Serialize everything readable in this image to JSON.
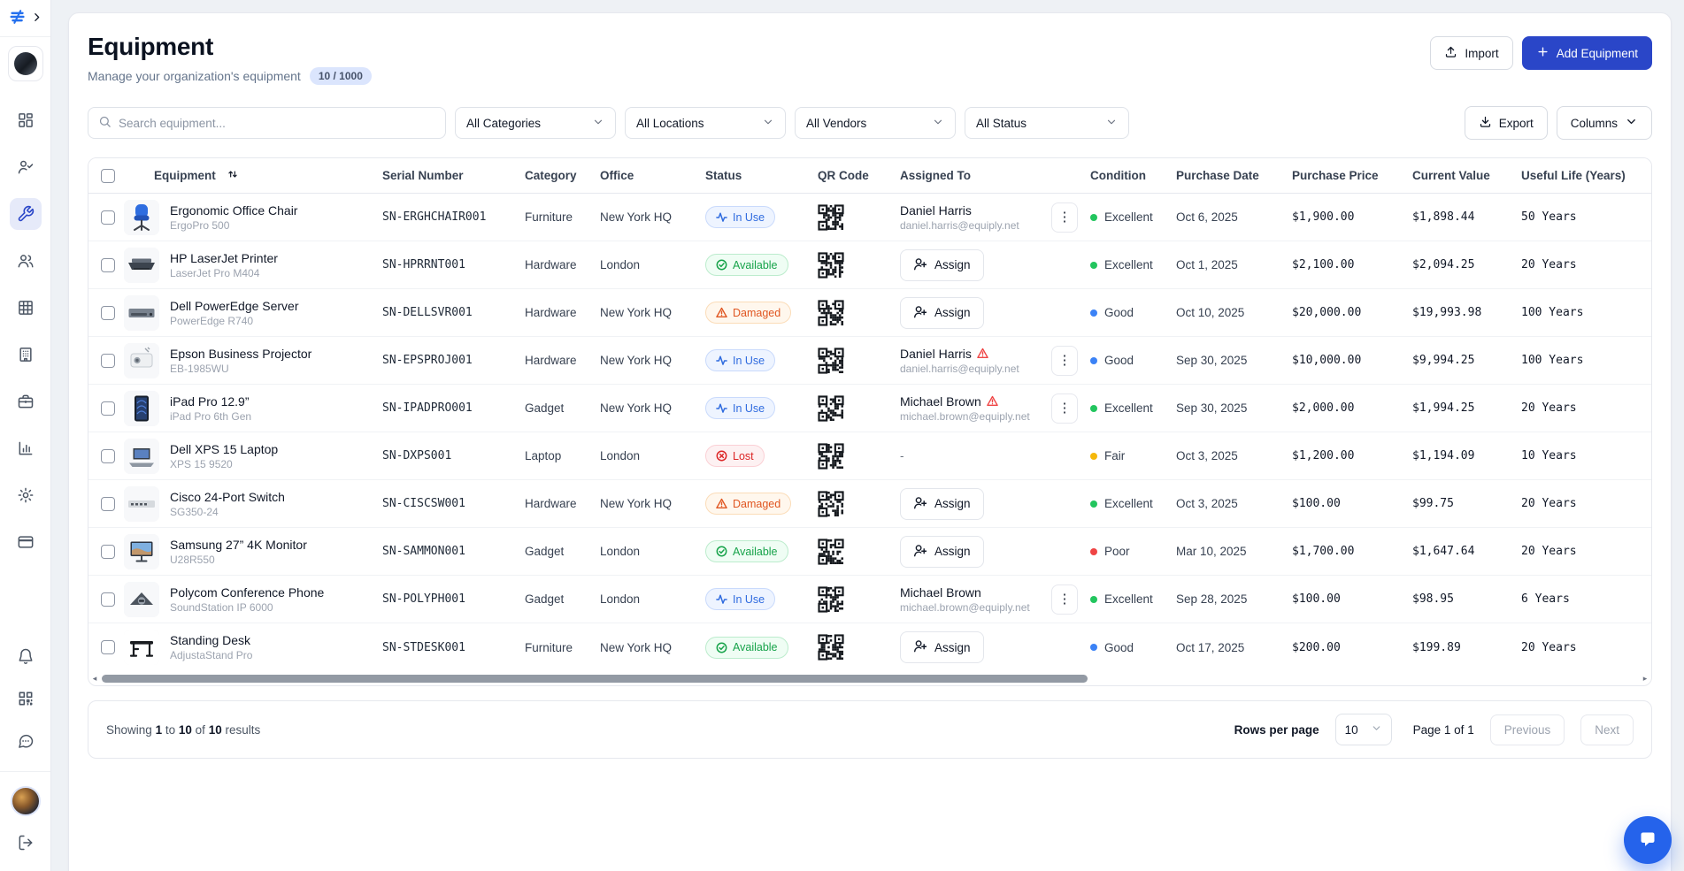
{
  "sidebar": {
    "nav_items": [
      "dashboard",
      "user-check",
      "equipment-wrench",
      "people",
      "inventory-grid",
      "office-building",
      "briefcase",
      "reports-chart",
      "settings-gear",
      "billing-card"
    ],
    "active_item": "equipment-wrench",
    "footer_items": [
      "notifications-bell",
      "qr-scanner",
      "chat-messages",
      "user-avatar",
      "logout"
    ]
  },
  "header": {
    "title": "Equipment",
    "subtitle": "Manage your organization's equipment",
    "count_badge": "10 / 1000",
    "import_label": "Import",
    "add_label": "Add Equipment"
  },
  "filters": {
    "search_placeholder": "Search equipment...",
    "categories": "All Categories",
    "locations": "All Locations",
    "vendors": "All Vendors",
    "status": "All Status",
    "export_label": "Export",
    "columns_label": "Columns"
  },
  "table": {
    "columns": [
      "Equipment",
      "Serial Number",
      "Category",
      "Office",
      "Status",
      "QR Code",
      "Assigned To",
      "Condition",
      "Purchase Date",
      "Purchase Price",
      "Current Value",
      "Useful Life (Years)"
    ],
    "rows": [
      {
        "name": "Ergonomic Office Chair",
        "model": "ErgoPro 500",
        "thumb": "chair",
        "serial": "SN-ERGHCHAIR001",
        "category": "Furniture",
        "office": "New York HQ",
        "status": "In Use",
        "status_key": "in-use",
        "assigned": {
          "type": "user",
          "name": "Daniel Harris",
          "email": "daniel.harris@equiply.net",
          "warning": false
        },
        "condition": "Excellent",
        "purchase_date": "Oct 6, 2025",
        "purchase_price": "$1,900.00",
        "current_value": "$1,898.44",
        "useful_life": "50 Years"
      },
      {
        "name": "HP LaserJet Printer",
        "model": "LaserJet Pro M404",
        "thumb": "printer",
        "serial": "SN-HPRRNT001",
        "category": "Hardware",
        "office": "London",
        "status": "Available",
        "status_key": "available",
        "assigned": {
          "type": "assign",
          "label": "Assign"
        },
        "condition": "Excellent",
        "purchase_date": "Oct 1, 2025",
        "purchase_price": "$2,100.00",
        "current_value": "$2,094.25",
        "useful_life": "20 Years"
      },
      {
        "name": "Dell PowerEdge Server",
        "model": "PowerEdge R740",
        "thumb": "server",
        "serial": "SN-DELLSVR001",
        "category": "Hardware",
        "office": "New York HQ",
        "status": "Damaged",
        "status_key": "damaged",
        "assigned": {
          "type": "assign",
          "label": "Assign"
        },
        "condition": "Good",
        "purchase_date": "Oct 10, 2025",
        "purchase_price": "$20,000.00",
        "current_value": "$19,993.98",
        "useful_life": "100 Years"
      },
      {
        "name": "Epson Business Projector",
        "model": "EB-1985WU",
        "thumb": "projector",
        "serial": "SN-EPSPROJ001",
        "category": "Hardware",
        "office": "New York HQ",
        "status": "In Use",
        "status_key": "in-use",
        "assigned": {
          "type": "user",
          "name": "Daniel Harris",
          "email": "daniel.harris@equiply.net",
          "warning": true
        },
        "condition": "Good",
        "purchase_date": "Sep 30, 2025",
        "purchase_price": "$10,000.00",
        "current_value": "$9,994.25",
        "useful_life": "100 Years"
      },
      {
        "name": "iPad Pro 12.9”",
        "model": "iPad Pro 6th Gen",
        "thumb": "tablet",
        "serial": "SN-IPADPRO001",
        "category": "Gadget",
        "office": "New York HQ",
        "status": "In Use",
        "status_key": "in-use",
        "assigned": {
          "type": "user",
          "name": "Michael Brown",
          "email": "michael.brown@equiply.net",
          "warning": true
        },
        "condition": "Excellent",
        "purchase_date": "Sep 30, 2025",
        "purchase_price": "$2,000.00",
        "current_value": "$1,994.25",
        "useful_life": "20 Years"
      },
      {
        "name": "Dell XPS 15 Laptop",
        "model": "XPS 15 9520",
        "thumb": "laptop",
        "serial": "SN-DXPS001",
        "category": "Laptop",
        "office": "London",
        "status": "Lost",
        "status_key": "lost",
        "assigned": {
          "type": "none",
          "label": "-"
        },
        "condition": "Fair",
        "purchase_date": "Oct 3, 2025",
        "purchase_price": "$1,200.00",
        "current_value": "$1,194.09",
        "useful_life": "10 Years"
      },
      {
        "name": "Cisco 24-Port Switch",
        "model": "SG350-24",
        "thumb": "switch",
        "serial": "SN-CISCSW001",
        "category": "Hardware",
        "office": "New York HQ",
        "status": "Damaged",
        "status_key": "damaged",
        "assigned": {
          "type": "assign",
          "label": "Assign"
        },
        "condition": "Excellent",
        "purchase_date": "Oct 3, 2025",
        "purchase_price": "$100.00",
        "current_value": "$99.75",
        "useful_life": "20 Years"
      },
      {
        "name": "Samsung 27” 4K Monitor",
        "model": "U28R550",
        "thumb": "monitor",
        "serial": "SN-SAMMON001",
        "category": "Gadget",
        "office": "London",
        "status": "Available",
        "status_key": "available",
        "assigned": {
          "type": "assign",
          "label": "Assign"
        },
        "condition": "Poor",
        "purchase_date": "Mar 10, 2025",
        "purchase_price": "$1,700.00",
        "current_value": "$1,647.64",
        "useful_life": "20 Years"
      },
      {
        "name": "Polycom Conference Phone",
        "model": "SoundStation IP 6000",
        "thumb": "phone",
        "serial": "SN-POLYPH001",
        "category": "Gadget",
        "office": "London",
        "status": "In Use",
        "status_key": "in-use",
        "assigned": {
          "type": "user",
          "name": "Michael Brown",
          "email": "michael.brown@equiply.net",
          "warning": false
        },
        "condition": "Excellent",
        "purchase_date": "Sep 28, 2025",
        "purchase_price": "$100.00",
        "current_value": "$98.95",
        "useful_life": "6 Years"
      },
      {
        "name": "Standing Desk",
        "model": "AdjustaStand Pro",
        "thumb": "desk",
        "serial": "SN-STDESK001",
        "category": "Furniture",
        "office": "New York HQ",
        "status": "Available",
        "status_key": "available",
        "assigned": {
          "type": "assign",
          "label": "Assign"
        },
        "condition": "Good",
        "purchase_date": "Oct 17, 2025",
        "purchase_price": "$200.00",
        "current_value": "$199.89",
        "useful_life": "20 Years"
      }
    ]
  },
  "footer": {
    "showing": {
      "prefix": "Showing",
      "from": "1",
      "to_word": "to",
      "to": "10",
      "of_word": "of",
      "total": "10",
      "suffix": "results"
    },
    "rows_per_page_label": "Rows per page",
    "rows_per_page_value": "10",
    "page_label": "Page 1 of 1",
    "previous_label": "Previous",
    "next_label": "Next"
  },
  "colors": {
    "primary": "#2a46c8",
    "chat_bubble": "#2563eb",
    "status_in_use": "#2f6bdf",
    "status_available": "#17a34a",
    "status_damaged": "#e05621",
    "status_lost": "#dc2626",
    "condition_excellent": "#22c55e",
    "condition_good": "#3b82f6",
    "condition_fair": "#f5b80b",
    "condition_poor": "#ef4444"
  }
}
